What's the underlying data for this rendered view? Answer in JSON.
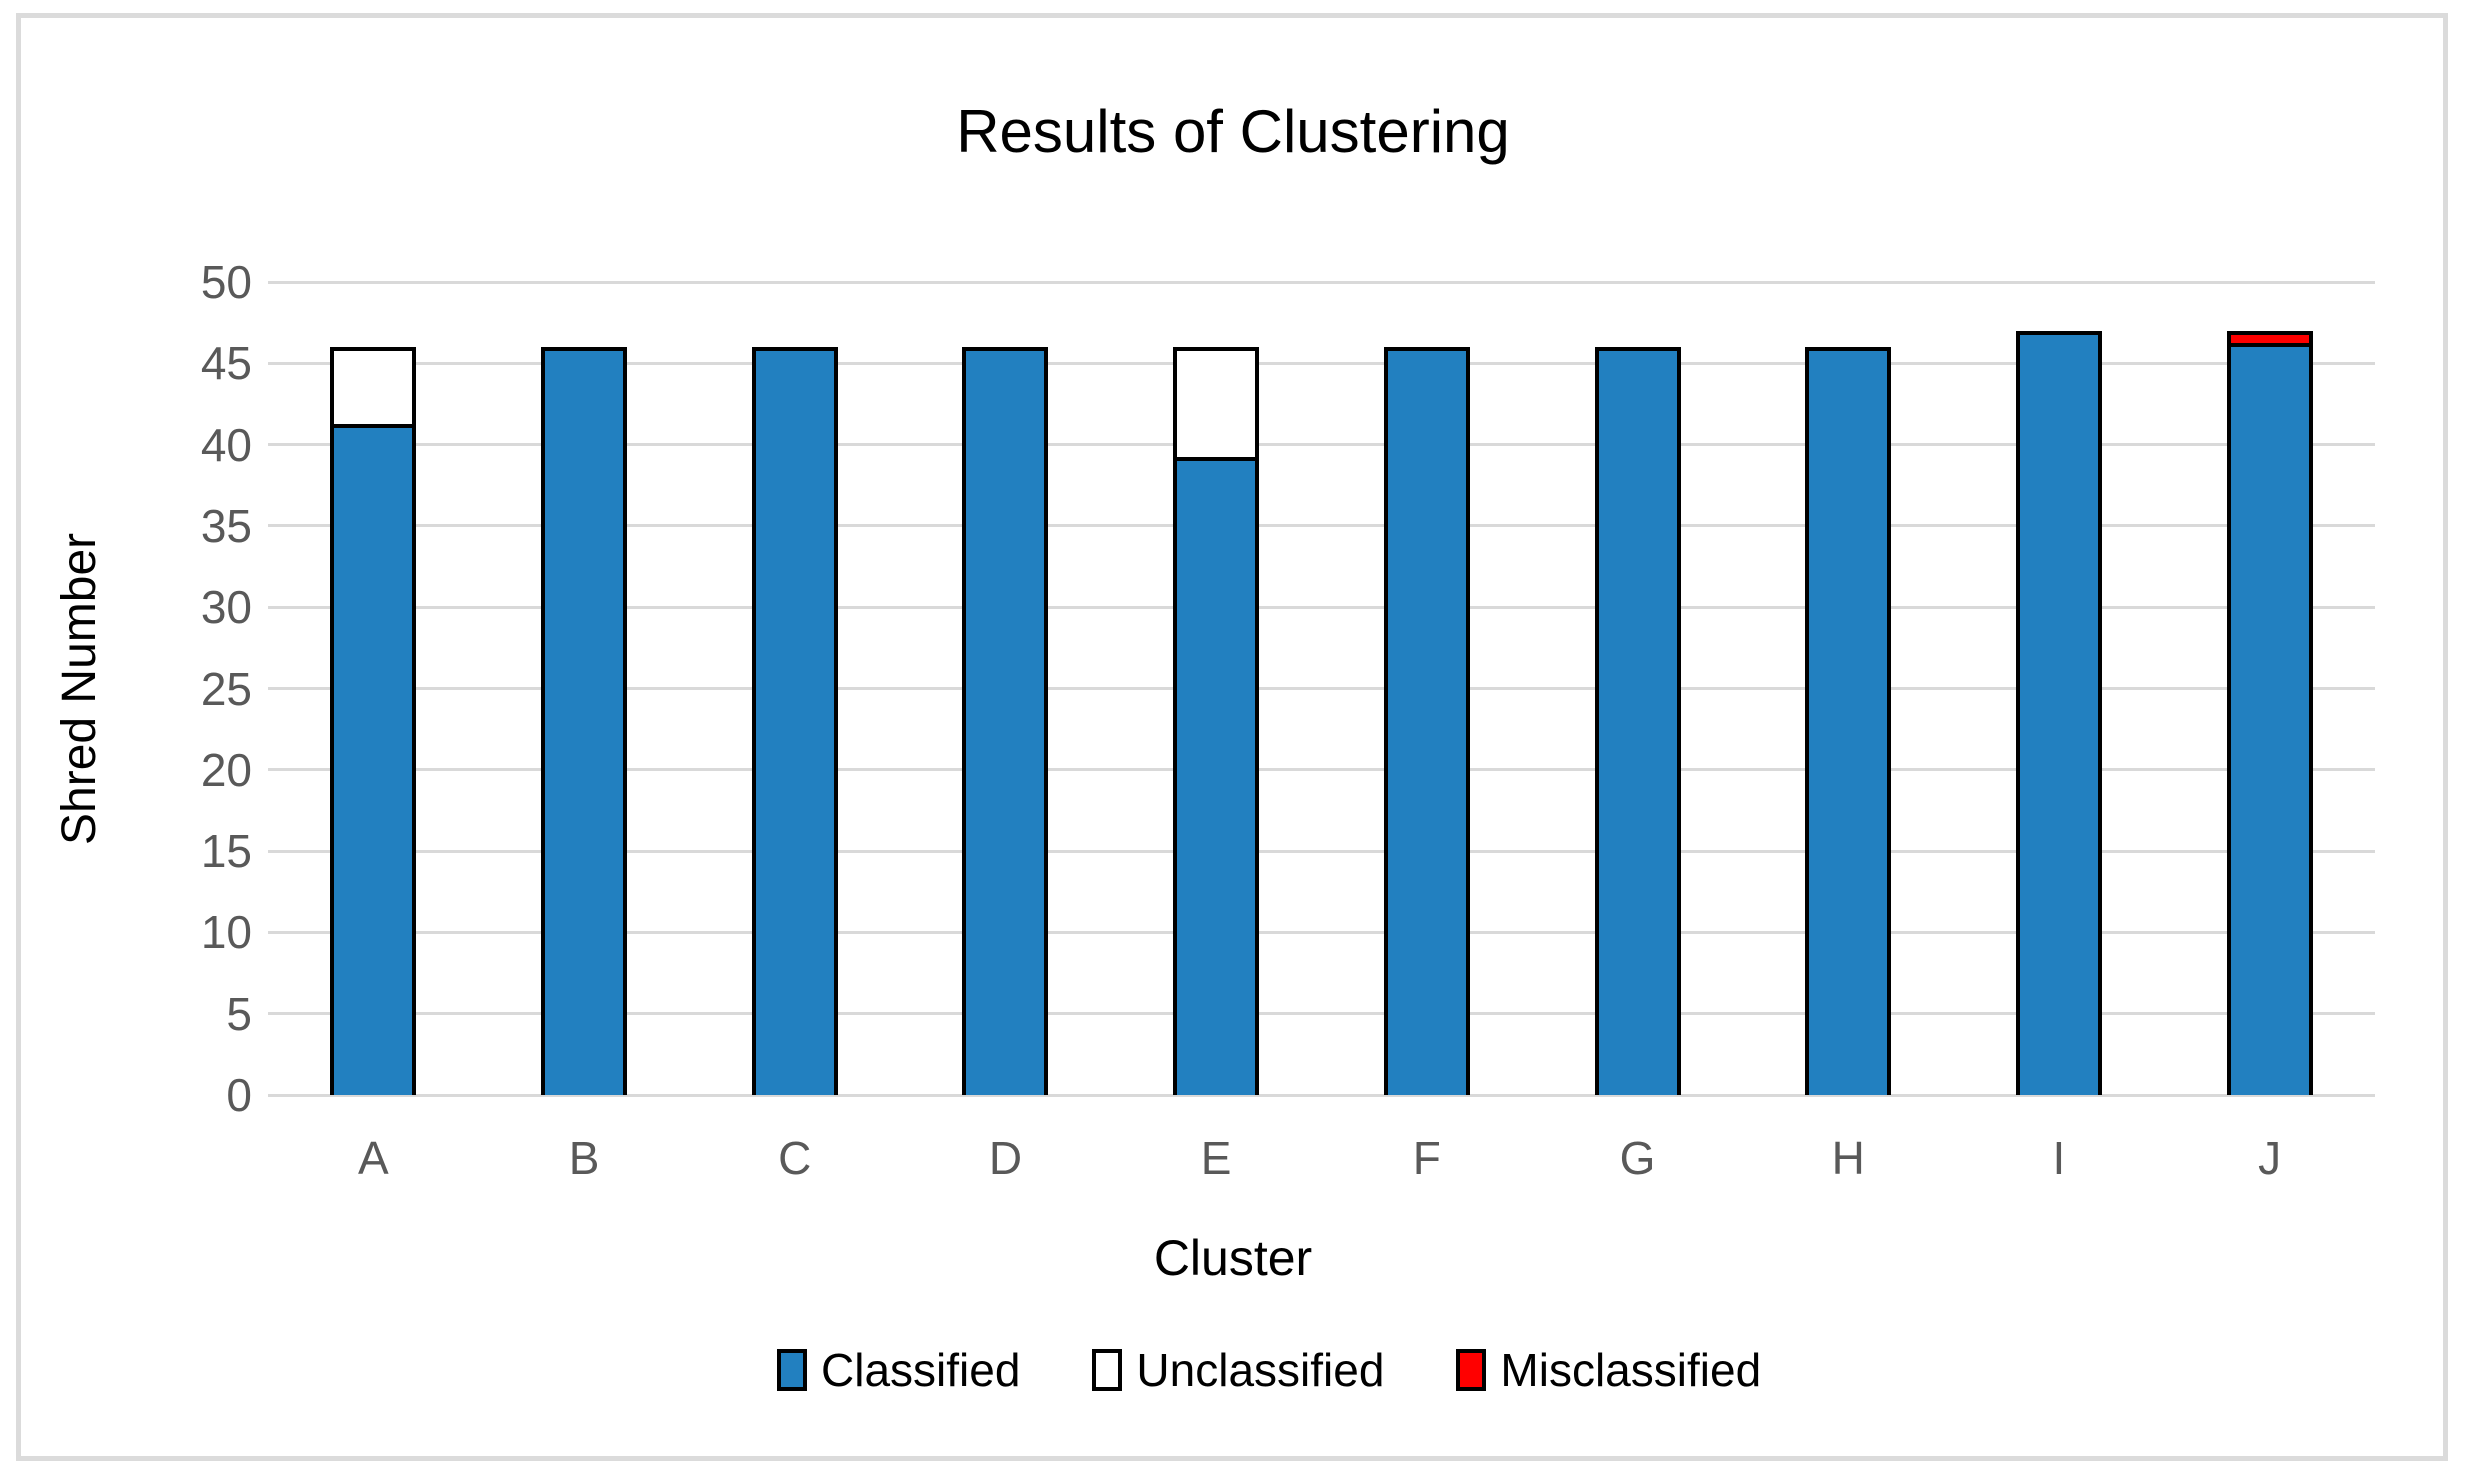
{
  "frame": {
    "border_color": "#DBDBDB"
  },
  "chart_data": {
    "type": "bar",
    "stacked": true,
    "title": "Results of Clustering",
    "xlabel": "Cluster",
    "ylabel": "Shred Number",
    "categories": [
      "A",
      "B",
      "C",
      "D",
      "E",
      "F",
      "G",
      "H",
      "I",
      "J"
    ],
    "series": [
      {
        "name": "Classified",
        "color": "#2280C0",
        "values": [
          41,
          46,
          46,
          46,
          39,
          46,
          46,
          46,
          47,
          46
        ]
      },
      {
        "name": "Unclassified",
        "color": "#FFFFFF",
        "values": [
          5,
          0,
          0,
          0,
          7,
          0,
          0,
          0,
          0,
          0
        ]
      },
      {
        "name": "Misclassified",
        "color": "#FF0000",
        "values": [
          0,
          0,
          0,
          0,
          0,
          0,
          0,
          0,
          0,
          1
        ]
      }
    ],
    "totals": [
      46,
      46,
      46,
      46,
      46,
      46,
      46,
      46,
      47,
      47
    ],
    "ylim": [
      0,
      50
    ],
    "yticks": [
      0,
      5,
      10,
      15,
      20,
      25,
      30,
      35,
      40,
      45,
      50
    ],
    "grid": true,
    "gridline_color": "#D9D9D9",
    "tick_label_color": "#595959",
    "bar_border_color": "#000000",
    "legend_position": "bottom"
  }
}
